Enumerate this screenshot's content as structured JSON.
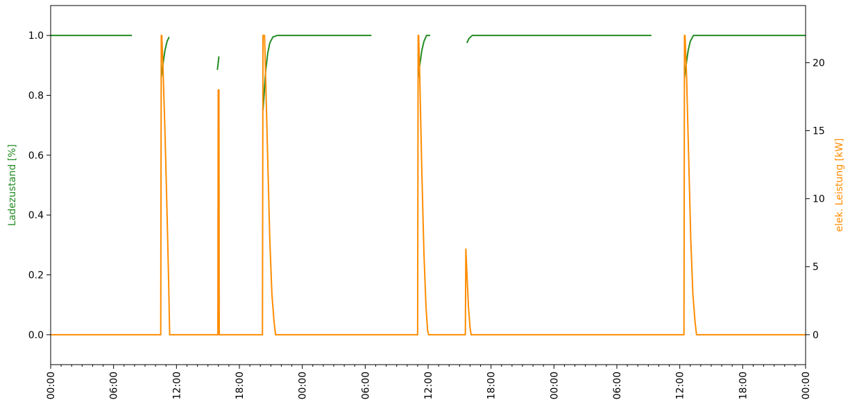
{
  "chart_data": {
    "type": "line",
    "title": "",
    "xlabel": "",
    "x_ticks": [
      "00:00",
      "06:00",
      "12:00",
      "18:00",
      "00:00",
      "06:00",
      "12:00",
      "18:00",
      "00:00",
      "06:00",
      "12:00",
      "18:00",
      "00:00"
    ],
    "x_range_hours": [
      0,
      72
    ],
    "y_left": {
      "label": "Ladezustand [%]",
      "range": [
        -0.1,
        1.1
      ],
      "ticks": [
        "0.0",
        "0.2",
        "0.4",
        "0.6",
        "0.8",
        "1.0"
      ],
      "color": "#228B22"
    },
    "y_right": {
      "label": "elek. Leistung [kW]",
      "range": [
        -2.2,
        24.2
      ],
      "ticks": [
        "0",
        "5",
        "10",
        "15",
        "20"
      ],
      "color": "#FF8C00"
    },
    "grid": false,
    "legend": false,
    "series": [
      {
        "axis": "left",
        "color": "#228B22",
        "segments": [
          [
            [
              0,
              1.0
            ],
            [
              7.75,
              1.0
            ]
          ],
          [
            [
              10.55,
              0.86
            ],
            [
              10.7,
              0.9
            ],
            [
              10.9,
              0.95
            ],
            [
              11.1,
              0.98
            ],
            [
              11.3,
              0.995
            ]
          ],
          [
            [
              15.9,
              0.885
            ],
            [
              16.05,
              0.93
            ]
          ],
          [
            [
              20.25,
              0.75
            ],
            [
              20.35,
              0.8
            ],
            [
              20.5,
              0.88
            ],
            [
              20.7,
              0.94
            ],
            [
              20.9,
              0.975
            ],
            [
              21.2,
              0.995
            ],
            [
              21.6,
              1.0
            ],
            [
              30.6,
              1.0
            ]
          ],
          [
            [
              35.05,
              0.86
            ],
            [
              35.2,
              0.9
            ],
            [
              35.4,
              0.95
            ],
            [
              35.6,
              0.98
            ],
            [
              35.85,
              1.0
            ],
            [
              36.2,
              1.0
            ]
          ],
          [
            [
              39.7,
              0.975
            ],
            [
              39.9,
              0.99
            ],
            [
              40.2,
              1.0
            ],
            [
              57.3,
              1.0
            ]
          ],
          [
            [
              60.45,
              0.86
            ],
            [
              60.6,
              0.9
            ],
            [
              60.8,
              0.95
            ],
            [
              61.0,
              0.98
            ],
            [
              61.3,
              1.0
            ],
            [
              72,
              1.0
            ]
          ]
        ]
      },
      {
        "axis": "right",
        "color": "#FF8C00",
        "segments": [
          [
            [
              0,
              0
            ],
            [
              10.5,
              0
            ],
            [
              10.55,
              22
            ],
            [
              10.6,
              22
            ],
            [
              10.7,
              20
            ],
            [
              10.9,
              15
            ],
            [
              11.1,
              9
            ],
            [
              11.25,
              4
            ],
            [
              11.3,
              2
            ],
            [
              11.35,
              0
            ],
            [
              15.95,
              0
            ],
            [
              15.98,
              18
            ],
            [
              16.0,
              15
            ],
            [
              16.02,
              0
            ],
            [
              16.05,
              18
            ],
            [
              16.08,
              0
            ],
            [
              20.2,
              0
            ],
            [
              20.25,
              22
            ],
            [
              20.4,
              22
            ],
            [
              20.5,
              19
            ],
            [
              20.7,
              13
            ],
            [
              20.9,
              7
            ],
            [
              21.1,
              3
            ],
            [
              21.3,
              1
            ],
            [
              21.45,
              0
            ],
            [
              35.0,
              0
            ],
            [
              35.05,
              22
            ],
            [
              35.1,
              22
            ],
            [
              35.2,
              19
            ],
            [
              35.4,
              12
            ],
            [
              35.6,
              6
            ],
            [
              35.8,
              2
            ],
            [
              35.95,
              0.3
            ],
            [
              36.05,
              0
            ],
            [
              39.55,
              0
            ],
            [
              39.6,
              6.3
            ],
            [
              39.7,
              4.5
            ],
            [
              39.85,
              2
            ],
            [
              40.0,
              0.5
            ],
            [
              40.1,
              0
            ],
            [
              60.4,
              0
            ],
            [
              60.45,
              22
            ],
            [
              60.5,
              22
            ],
            [
              60.65,
              19
            ],
            [
              60.85,
              13
            ],
            [
              61.05,
              7
            ],
            [
              61.25,
              3
            ],
            [
              61.45,
              1
            ],
            [
              61.6,
              0
            ],
            [
              72,
              0
            ]
          ]
        ]
      }
    ]
  }
}
